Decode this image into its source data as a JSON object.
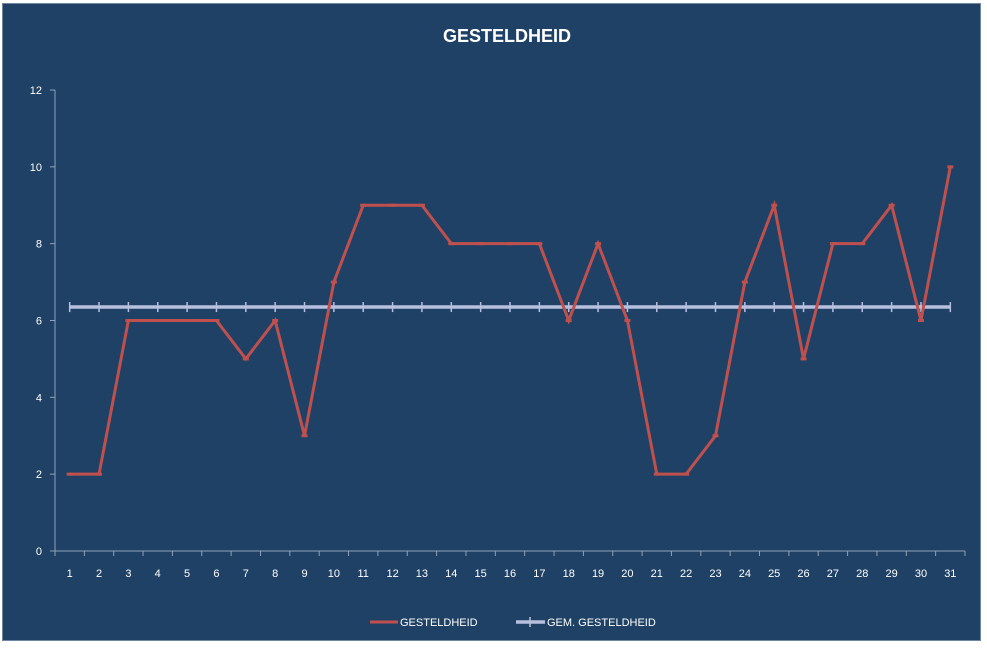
{
  "chart_data": {
    "type": "line",
    "title": "GESTELDHEID",
    "xlabel": "",
    "ylabel": "",
    "categories": [
      "1",
      "2",
      "3",
      "4",
      "5",
      "6",
      "7",
      "8",
      "9",
      "10",
      "11",
      "12",
      "13",
      "14",
      "15",
      "16",
      "17",
      "18",
      "19",
      "20",
      "21",
      "22",
      "23",
      "24",
      "25",
      "26",
      "27",
      "28",
      "29",
      "30",
      "31"
    ],
    "ylim": [
      0,
      12
    ],
    "yticks": [
      0,
      2,
      4,
      6,
      8,
      10,
      12
    ],
    "grid": false,
    "legend_position": "bottom",
    "series": [
      {
        "name": "GESTELDHEID",
        "color": "#c0504d",
        "values": [
          2,
          2,
          6,
          6,
          6,
          6,
          5,
          6,
          3,
          7,
          9,
          9,
          9,
          8,
          8,
          8,
          8,
          6,
          8,
          6,
          2,
          2,
          3,
          7,
          9,
          5,
          8,
          8,
          9,
          6,
          10
        ]
      },
      {
        "name": "GEM. GESTELDHEID",
        "color": "#b8c0e0",
        "values": [
          6.35,
          6.35,
          6.35,
          6.35,
          6.35,
          6.35,
          6.35,
          6.35,
          6.35,
          6.35,
          6.35,
          6.35,
          6.35,
          6.35,
          6.35,
          6.35,
          6.35,
          6.35,
          6.35,
          6.35,
          6.35,
          6.35,
          6.35,
          6.35,
          6.35,
          6.35,
          6.35,
          6.35,
          6.35,
          6.35,
          6.35
        ]
      }
    ]
  }
}
